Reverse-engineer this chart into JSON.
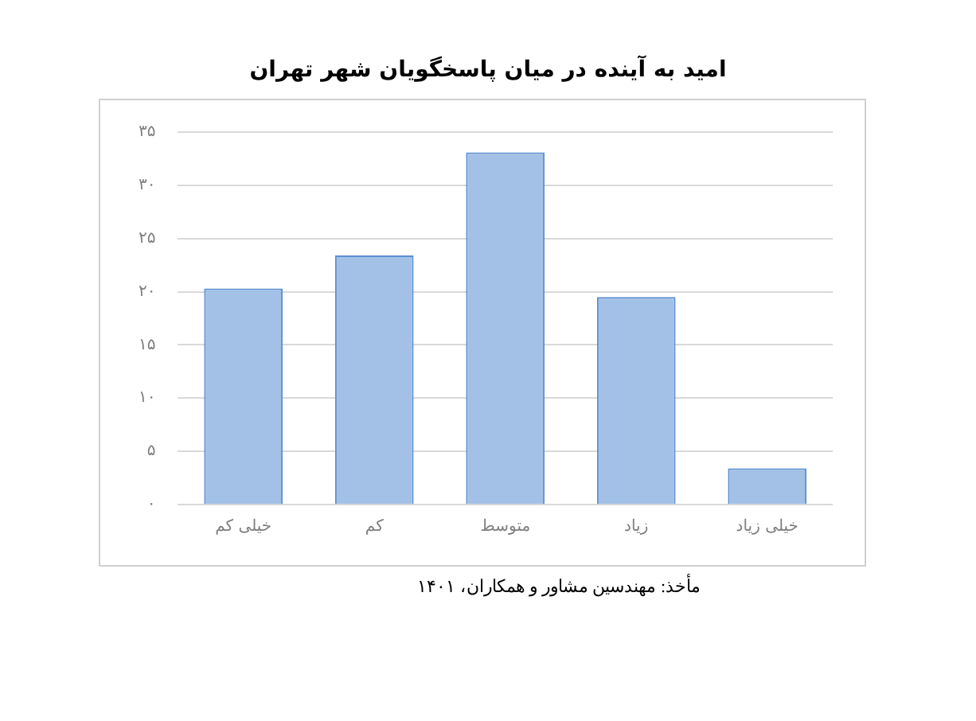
{
  "chart_data": {
    "type": "bar",
    "title": "امید به آینده در میان پاسخگویان شهر تهران",
    "categories": [
      "خیلی کم",
      "کم",
      "متوسط",
      "زیاد",
      "خیلی زیاد"
    ],
    "values": [
      20.3,
      23.4,
      33.1,
      19.5,
      3.4
    ],
    "color": "#a3c1e6",
    "ylim": [
      0,
      35
    ],
    "yticks": [
      {
        "value": 0,
        "label": "۰"
      },
      {
        "value": 5,
        "label": "۵"
      },
      {
        "value": 10,
        "label": "۱۰"
      },
      {
        "value": 15,
        "label": "۱۵"
      },
      {
        "value": 20,
        "label": "۲۰"
      },
      {
        "value": 25,
        "label": "۲۵"
      },
      {
        "value": 30,
        "label": "۳۰"
      },
      {
        "value": 35,
        "label": "۳۵"
      }
    ],
    "grid": "y",
    "legend": false,
    "annotations": [
      "مأخذ: مهندسین مشاور و همکاران، ۱۴۰۱"
    ]
  }
}
